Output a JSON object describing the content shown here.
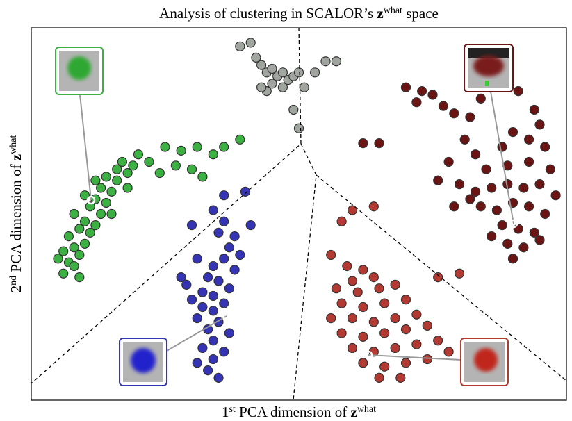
{
  "chart_data": {
    "type": "scatter",
    "title": [
      "Analysis of clustering in SCALOR’s ",
      "z",
      "what",
      " space"
    ],
    "xlabel": [
      "1",
      "st",
      " PCA dimension of ",
      "z",
      "what"
    ],
    "ylabel": [
      "2",
      "nd",
      " PCA dimension of ",
      "z",
      "what"
    ],
    "xlim": [
      0,
      100
    ],
    "ylim": [
      0,
      100
    ],
    "series": [
      {
        "color": "#3db043",
        "x": [
          6,
          7,
          8,
          6,
          8,
          9,
          10,
          7,
          9,
          11,
          10,
          12,
          8,
          11,
          13,
          12,
          14,
          10,
          13,
          15,
          14,
          16,
          16,
          18,
          17,
          19,
          12,
          15,
          5,
          9,
          18,
          20,
          22,
          25,
          28,
          31,
          34,
          30,
          27,
          24,
          36,
          39,
          32
        ],
        "y": [
          34,
          37,
          36,
          40,
          41,
          39,
          42,
          44,
          46,
          45,
          48,
          47,
          50,
          52,
          50,
          54,
          53,
          55,
          57,
          56,
          60,
          59,
          62,
          61,
          64,
          63,
          59,
          50,
          38,
          33,
          57,
          66,
          64,
          68,
          67,
          68,
          66,
          62,
          63,
          61,
          68,
          70,
          60
        ]
      },
      {
        "color": "#a0a5a0",
        "x": [
          39,
          41,
          42,
          43,
          44,
          45,
          46,
          47,
          48,
          45,
          47,
          49,
          50,
          44,
          43,
          53,
          55,
          57,
          51,
          49,
          50
        ],
        "y": [
          95,
          96,
          92,
          90,
          88,
          89,
          87,
          88,
          86,
          85,
          84,
          87,
          88,
          83,
          84,
          88,
          91,
          91,
          84,
          78,
          73
        ]
      },
      {
        "color": "#6a1414",
        "x": [
          70,
          73,
          75,
          72,
          77,
          79,
          82,
          84,
          91,
          94,
          95,
          93,
          96,
          90,
          88,
          83,
          81,
          78,
          85,
          89,
          93,
          97,
          80,
          83,
          86,
          89,
          92,
          95,
          98,
          84,
          87,
          90,
          93,
          96,
          88,
          91,
          94,
          86,
          89,
          92,
          95,
          90,
          82,
          79,
          76,
          65,
          62
        ],
        "y": [
          84,
          83,
          82,
          80,
          79,
          77,
          76,
          81,
          83,
          78,
          74,
          70,
          68,
          72,
          68,
          66,
          70,
          64,
          62,
          63,
          64,
          62,
          58,
          56,
          57,
          58,
          57,
          58,
          55,
          52,
          51,
          53,
          52,
          50,
          47,
          46,
          45,
          44,
          42,
          41,
          43,
          38,
          54,
          52,
          59,
          69,
          69
        ]
      },
      {
        "color": "#3434b4",
        "x": [
          36,
          34,
          36,
          38,
          35,
          37,
          39,
          36,
          34,
          38,
          35,
          33,
          37,
          34,
          32,
          36,
          34,
          32,
          35,
          33,
          31,
          34,
          32,
          34,
          33,
          35,
          31,
          30,
          29,
          28,
          31,
          37,
          36,
          30,
          40,
          41
        ],
        "y": [
          55,
          51,
          48,
          44,
          45,
          41,
          39,
          38,
          36,
          35,
          32,
          33,
          30,
          28,
          29,
          26,
          24,
          25,
          21,
          19,
          22,
          16,
          14,
          11,
          8,
          6,
          10,
          27,
          31,
          33,
          38,
          18,
          13,
          47,
          56,
          47
        ]
      },
      {
        "color": "#b23a32",
        "x": [
          56,
          59,
          62,
          60,
          64,
          57,
          61,
          65,
          68,
          58,
          62,
          66,
          70,
          60,
          64,
          68,
          72,
          58,
          62,
          66,
          70,
          74,
          60,
          64,
          68,
          72,
          76,
          62,
          66,
          70,
          74,
          78,
          65,
          69,
          56,
          58,
          60,
          64,
          76,
          80
        ],
        "y": [
          39,
          36,
          35,
          32,
          33,
          30,
          29,
          30,
          31,
          26,
          25,
          26,
          27,
          22,
          21,
          22,
          23,
          18,
          17,
          18,
          19,
          20,
          14,
          13,
          14,
          15,
          16,
          10,
          9,
          10,
          11,
          13,
          6,
          6,
          22,
          48,
          51,
          52,
          33,
          34
        ]
      }
    ]
  }
}
